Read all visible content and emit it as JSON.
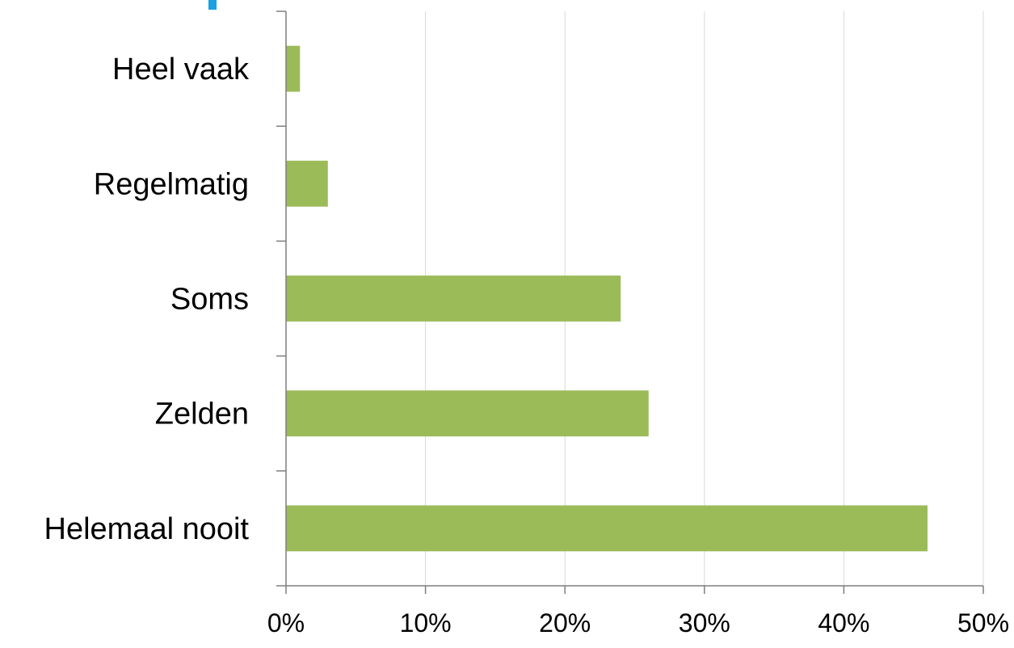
{
  "chart_data": {
    "type": "bar",
    "orientation": "horizontal",
    "categories": [
      "Heel vaak",
      "Regelmatig",
      "Soms",
      "Zelden",
      "Helemaal nooit"
    ],
    "values": [
      1,
      3,
      24,
      26,
      46
    ],
    "value_unit": "%",
    "xlim": [
      0,
      50
    ],
    "xticks": [
      0,
      10,
      20,
      30,
      40,
      50
    ],
    "xtick_labels": [
      "0%",
      "10%",
      "20%",
      "30%",
      "40%",
      "50%"
    ],
    "title": "",
    "xlabel": "",
    "ylabel": "",
    "grid": "vertical",
    "legend": "none",
    "bar_color": "#9bbb59",
    "accent_color": "#1ba1e2"
  }
}
